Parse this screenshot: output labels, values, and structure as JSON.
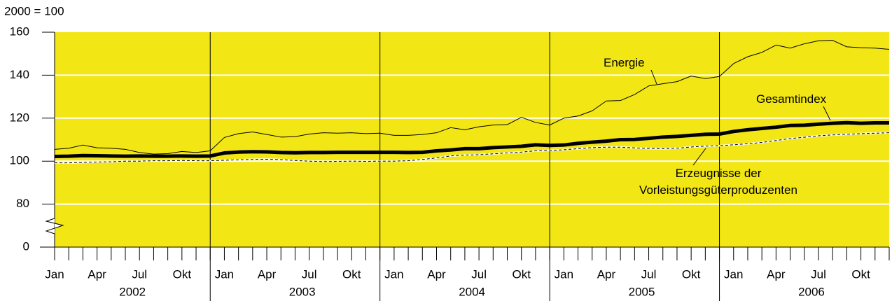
{
  "chart_data": {
    "type": "line",
    "title": "2000 = 100",
    "categories": [
      "Jan",
      null,
      null,
      "Apr",
      null,
      null,
      "Jul",
      null,
      null,
      "Okt",
      null,
      null,
      "Jan",
      null,
      null,
      "Apr",
      null,
      null,
      "Jul",
      null,
      null,
      "Okt",
      null,
      null,
      "Jan",
      null,
      null,
      "Apr",
      null,
      null,
      "Jul",
      null,
      null,
      "Okt",
      null,
      null,
      "Jan",
      null,
      null,
      "Apr",
      null,
      null,
      "Jul",
      null,
      null,
      "Okt",
      null,
      null,
      "Jan",
      null,
      null,
      "Apr",
      null,
      null,
      "Jul",
      null,
      null,
      "Okt",
      null,
      null
    ],
    "x_groups": [
      "2002",
      "2003",
      "2004",
      "2005",
      "2006"
    ],
    "ylim": [
      0,
      160
    ],
    "yticks": [
      0,
      80,
      100,
      120,
      140,
      160
    ],
    "y_break": [
      0,
      80
    ],
    "grid": true,
    "background": "#f2e614",
    "series": [
      {
        "name": "Energie",
        "color": "#000000",
        "line_width": 1,
        "dashed": false,
        "values": [
          105.5,
          106,
          107.5,
          106.2,
          106,
          105.5,
          104,
          103.3,
          103.5,
          104.5,
          104,
          104.8,
          111,
          112.8,
          113.6,
          112.4,
          111.2,
          111.4,
          112.6,
          113.2,
          113,
          113.2,
          112.8,
          113,
          112,
          112,
          112.4,
          113.2,
          115.6,
          114.6,
          116,
          116.8,
          117,
          120.4,
          118,
          116.8,
          120,
          121,
          123.4,
          128,
          128.2,
          131,
          135,
          136,
          137,
          139.6,
          138.4,
          139.4,
          145.4,
          148.6,
          150.6,
          154,
          152.6,
          154.6,
          156,
          156.2,
          153.2,
          152.8,
          152.6,
          152
        ]
      },
      {
        "name": "Gesamtindex",
        "color": "#000000",
        "line_width": 5,
        "dashed": false,
        "values": [
          102.2,
          102.3,
          102.6,
          102.5,
          102.4,
          102.3,
          102.4,
          102.3,
          102.3,
          102.4,
          102.3,
          102.4,
          103.8,
          104.2,
          104.4,
          104.3,
          104,
          103.9,
          104,
          104,
          104.1,
          104.1,
          104.1,
          104.1,
          104.1,
          104,
          104.1,
          104.8,
          105.2,
          105.8,
          105.8,
          106.3,
          106.6,
          106.9,
          107.6,
          107.3,
          107.5,
          108.3,
          108.8,
          109.3,
          110,
          110.1,
          110.6,
          111.2,
          111.5,
          112,
          112.5,
          112.6,
          113.8,
          114.6,
          115.2,
          115.8,
          116.6,
          116.7,
          117.2,
          117.6,
          117.9,
          117.6,
          117.8,
          117.8
        ]
      },
      {
        "name": "Erzeugnisse der\nVorleistungsgüterproduzenten",
        "color": "#000000",
        "line_width": 1,
        "dashed": true,
        "values": [
          99.2,
          99.2,
          99.4,
          99.6,
          99.7,
          100,
          100,
          100.2,
          100.2,
          100.3,
          100.2,
          100.2,
          100.4,
          100.6,
          100.8,
          100.9,
          100.7,
          100.3,
          100,
          99.8,
          99.9,
          100,
          99.9,
          100,
          100,
          100.2,
          100.8,
          101.5,
          102.4,
          102.8,
          103,
          103.4,
          103.8,
          104.2,
          104.8,
          105,
          105.3,
          105.8,
          106.3,
          106.5,
          106.5,
          106.2,
          105.9,
          105.8,
          106,
          106.6,
          107,
          107.2,
          107.6,
          108.1,
          108.7,
          109.6,
          110.5,
          111.1,
          111.8,
          112.2,
          112.5,
          112.8,
          113,
          113.2
        ]
      }
    ]
  }
}
